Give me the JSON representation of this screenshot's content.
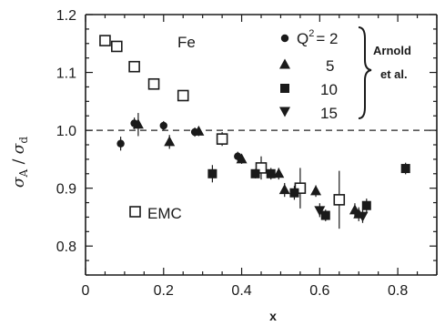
{
  "chart_data": {
    "type": "scatter",
    "title": "",
    "xlabel": "x",
    "ylabel": "σ_A / σ_d",
    "xlim": [
      0,
      0.9
    ],
    "ylim": [
      0.75,
      1.2
    ],
    "x_ticks": [
      0,
      0.2,
      0.4,
      0.6,
      0.8
    ],
    "x_tick_labels": [
      "0",
      "0.2",
      "0.4",
      "0.6",
      "0.8"
    ],
    "y_ticks": [
      0.8,
      0.9,
      1.0,
      1.1,
      1.2
    ],
    "y_tick_labels": [
      "0.8",
      "0.9",
      "1.0",
      "1.1",
      "1.2"
    ],
    "reference_line": {
      "y": 1.0,
      "style": "dashed"
    },
    "annotations": {
      "target": "Fe",
      "q2_label": "Q",
      "q2_superscript": "2",
      "q2_equals": "= 2",
      "arnold_line1": "Arnold",
      "arnold_line2": "et al.",
      "emc_label": "EMC"
    },
    "series": [
      {
        "name": "Q² = 2",
        "legend_value": "2",
        "marker": "circle-filled",
        "points": [
          {
            "x": 0.09,
            "y": 0.977,
            "err": 0.012
          },
          {
            "x": 0.125,
            "y": 1.012,
            "err": 0.01
          },
          {
            "x": 0.2,
            "y": 1.008,
            "err": 0.008
          },
          {
            "x": 0.28,
            "y": 0.997,
            "err": 0.008
          },
          {
            "x": 0.39,
            "y": 0.955,
            "err": 0.008
          }
        ]
      },
      {
        "name": "Q² = 5",
        "legend_value": "5",
        "marker": "triangle-up-filled",
        "points": [
          {
            "x": 0.135,
            "y": 1.01,
            "err": 0.02
          },
          {
            "x": 0.215,
            "y": 0.98,
            "err": 0.012
          },
          {
            "x": 0.29,
            "y": 0.998,
            "err": 0.008
          },
          {
            "x": 0.4,
            "y": 0.95,
            "err": 0.008
          },
          {
            "x": 0.495,
            "y": 0.925,
            "err": 0.01
          },
          {
            "x": 0.51,
            "y": 0.897,
            "err": 0.012
          },
          {
            "x": 0.59,
            "y": 0.895,
            "err": 0.01
          },
          {
            "x": 0.69,
            "y": 0.862,
            "err": 0.012
          },
          {
            "x": 0.7,
            "y": 0.855,
            "err": 0.012
          }
        ]
      },
      {
        "name": "Q² = 10",
        "legend_value": "10",
        "marker": "square-filled",
        "points": [
          {
            "x": 0.325,
            "y": 0.925,
            "err": 0.015
          },
          {
            "x": 0.435,
            "y": 0.925,
            "err": 0.008
          },
          {
            "x": 0.475,
            "y": 0.925,
            "err": 0.01
          },
          {
            "x": 0.535,
            "y": 0.892,
            "err": 0.012
          },
          {
            "x": 0.615,
            "y": 0.853,
            "err": 0.01
          },
          {
            "x": 0.72,
            "y": 0.87,
            "err": 0.012
          },
          {
            "x": 0.82,
            "y": 0.934,
            "err": 0.01
          }
        ]
      },
      {
        "name": "Q² = 15",
        "legend_value": "15",
        "marker": "triangle-down-filled",
        "points": [
          {
            "x": 0.6,
            "y": 0.862,
            "err": 0.012
          },
          {
            "x": 0.71,
            "y": 0.852,
            "err": 0.012
          }
        ]
      },
      {
        "name": "EMC",
        "marker": "square-open",
        "points": [
          {
            "x": 0.05,
            "y": 1.155,
            "err": 0.0
          },
          {
            "x": 0.08,
            "y": 1.145,
            "err": 0.0
          },
          {
            "x": 0.125,
            "y": 1.11,
            "err": 0.0
          },
          {
            "x": 0.175,
            "y": 1.08,
            "err": 0.0
          },
          {
            "x": 0.25,
            "y": 1.06,
            "err": 0.0
          },
          {
            "x": 0.35,
            "y": 0.985,
            "err": 0.012
          },
          {
            "x": 0.45,
            "y": 0.935,
            "err": 0.02
          },
          {
            "x": 0.55,
            "y": 0.9,
            "err": 0.035
          },
          {
            "x": 0.65,
            "y": 0.88,
            "err": 0.05
          }
        ]
      }
    ]
  }
}
